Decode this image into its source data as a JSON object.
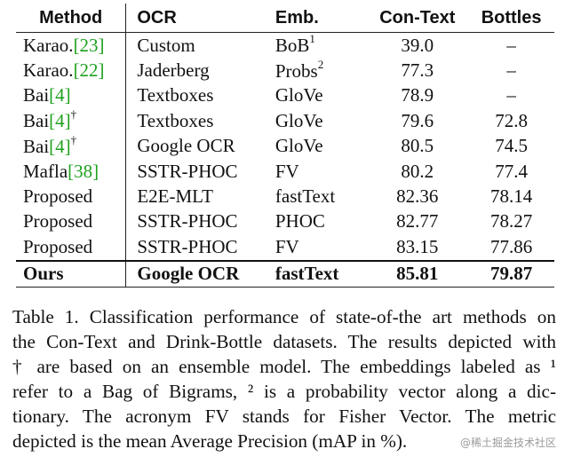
{
  "table": {
    "headers": [
      "Method",
      "OCR",
      "Emb.",
      "Con-Text",
      "Bottles"
    ],
    "rows": [
      {
        "method": "Karao.",
        "ref": "[23]",
        "dag": "",
        "ocr": "Custom",
        "emb": "BoB",
        "emb_sup": "1",
        "context": "39.0",
        "bottles": "–"
      },
      {
        "method": "Karao.",
        "ref": "[22]",
        "dag": "",
        "ocr": "Jaderberg",
        "emb": "Probs",
        "emb_sup": "2",
        "context": "77.3",
        "bottles": "–"
      },
      {
        "method": "Bai",
        "ref": "[4]",
        "dag": "",
        "ocr": "Textboxes",
        "emb": "GloVe",
        "emb_sup": "",
        "context": "78.9",
        "bottles": "–"
      },
      {
        "method": "Bai",
        "ref": "[4]",
        "dag": "†",
        "ocr": "Textboxes",
        "emb": "GloVe",
        "emb_sup": "",
        "context": "79.6",
        "bottles": "72.8"
      },
      {
        "method": "Bai",
        "ref": "[4]",
        "dag": "†",
        "ocr": "Google OCR",
        "emb": "GloVe",
        "emb_sup": "",
        "context": "80.5",
        "bottles": "74.5"
      },
      {
        "method": "Mafla",
        "ref": "[38]",
        "dag": "",
        "ocr": "SSTR-PHOC",
        "emb": "FV",
        "emb_sup": "",
        "context": "80.2",
        "bottles": "77.4"
      },
      {
        "method": "Proposed",
        "ref": "",
        "dag": "",
        "ocr": "E2E-MLT",
        "emb": "fastText",
        "emb_sup": "",
        "context": "82.36",
        "bottles": "78.14"
      },
      {
        "method": "Proposed",
        "ref": "",
        "dag": "",
        "ocr": "SSTR-PHOC",
        "emb": "PHOC",
        "emb_sup": "",
        "context": "82.77",
        "bottles": "78.27"
      },
      {
        "method": "Proposed",
        "ref": "",
        "dag": "",
        "ocr": "SSTR-PHOC",
        "emb": "FV",
        "emb_sup": "",
        "context": "83.15",
        "bottles": "77.86"
      },
      {
        "method": "Ours",
        "ref": "",
        "dag": "",
        "ocr": "Google OCR",
        "emb": "fastText",
        "emb_sup": "",
        "context": "85.81",
        "bottles": "79.87",
        "bold": true
      }
    ]
  },
  "caption": {
    "lines": [
      "Table 1. Classification performance of state-of-the art methods on",
      "the Con-Text and Drink-Bottle datasets. The results depicted with",
      "† are based on an ensemble model. The embeddings labeled as ¹",
      "refer to a Bag of Bigrams, ² is a probability vector along a dic-",
      "tionary. The acronym FV stands for Fisher Vector. The metric",
      "depicted is the mean Average Precision (mAP in %)."
    ]
  },
  "watermark": "@稀土掘金技术社区"
}
